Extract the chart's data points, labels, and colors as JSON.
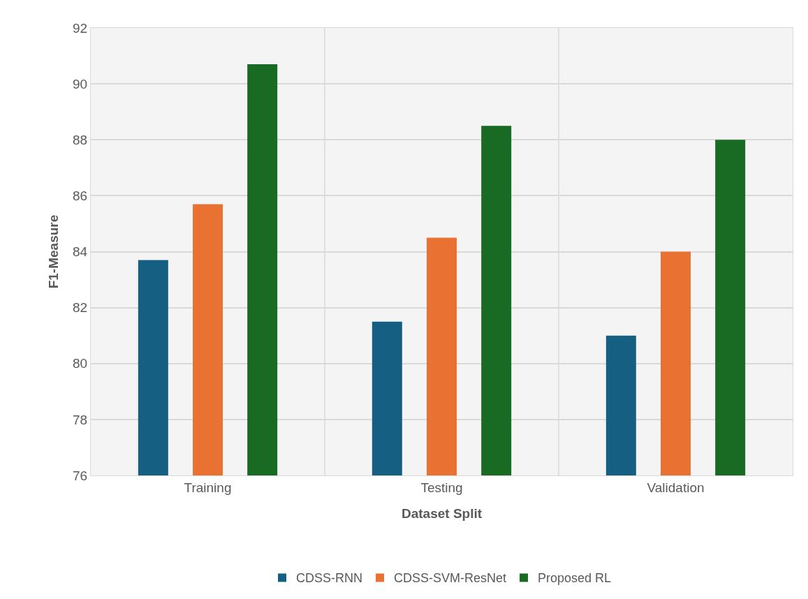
{
  "chart_data": {
    "type": "bar",
    "xlabel": "Dataset Split",
    "ylabel": "F1-Measure",
    "categories": [
      "Training",
      "Testing",
      "Validation"
    ],
    "series": [
      {
        "name": "CDSS-RNN",
        "color": "#156082",
        "values": [
          83.7,
          81.5,
          81.0
        ]
      },
      {
        "name": "CDSS-SVM-ResNet",
        "color": "#e97132",
        "values": [
          85.7,
          84.5,
          84.0
        ]
      },
      {
        "name": "Proposed RL",
        "color": "#196b24",
        "values": [
          90.7,
          88.5,
          88.0
        ]
      }
    ],
    "ylim": [
      76,
      92
    ],
    "yticks": [
      76,
      78,
      80,
      82,
      84,
      86,
      88,
      90,
      92
    ],
    "grid": true,
    "legend": "bottom"
  }
}
